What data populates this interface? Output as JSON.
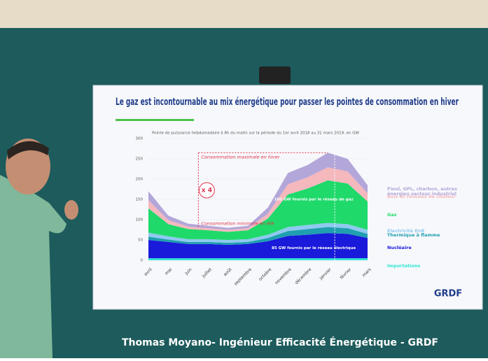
{
  "slide": {
    "title": "Le gaz est incontournable au mix énergétique pour passer les pointes de consommation en hiver",
    "chart": {
      "type": "area",
      "subtitle": "Pointe de puissance hebdomadaire à 8h du matin sur la période du 1er avril 2018 au 31 mars 2019, en GW",
      "categories": [
        "avril",
        "mai",
        "juin",
        "juillet",
        "août",
        "septembre",
        "octobre",
        "novembre",
        "décembre",
        "janvier",
        "février",
        "mars"
      ],
      "ylim": [
        0,
        300
      ],
      "yticks": [
        0,
        50,
        100,
        150,
        200,
        250,
        300
      ],
      "series": [
        {
          "name": "Importations",
          "color": "#2ee6d6",
          "values": [
            5,
            5,
            5,
            5,
            5,
            5,
            5,
            5,
            5,
            5,
            5,
            5
          ]
        },
        {
          "name": "Nucléaire",
          "color": "#1a1adb",
          "values": [
            45,
            40,
            35,
            35,
            33,
            35,
            42,
            55,
            58,
            62,
            60,
            50
          ]
        },
        {
          "name": "Thermique à flamme",
          "color": "#1f9fb0",
          "values": [
            8,
            6,
            5,
            5,
            5,
            5,
            8,
            12,
            14,
            15,
            14,
            10
          ]
        },
        {
          "name": "Electricité EnR",
          "color": "#8ec9f0",
          "values": [
            10,
            8,
            7,
            7,
            7,
            7,
            8,
            10,
            10,
            10,
            10,
            10
          ]
        },
        {
          "name": "Gaz",
          "color": "#1fd96a",
          "values": [
            60,
            30,
            25,
            22,
            20,
            22,
            40,
            80,
            90,
            105,
            100,
            70
          ]
        },
        {
          "name": "Bois et réseaux de chaleur",
          "color": "#f4b8bd",
          "values": [
            20,
            10,
            6,
            5,
            5,
            5,
            12,
            25,
            28,
            32,
            30,
            20
          ]
        },
        {
          "name": "Fioul, GPL, charbon, autres énergies secteur industriel",
          "color": "#b3a6d9",
          "values": [
            22,
            11,
            7,
            6,
            5,
            6,
            15,
            28,
            30,
            36,
            31,
            20
          ]
        }
      ],
      "annotations": {
        "max": "Consommation maximale en hiver",
        "ratio": "x 4",
        "min": "Consommation minimale en été",
        "gas": "105 GW fournis par le réseau de gaz",
        "elec": "85 GW fournis par le réseau électrique"
      }
    },
    "logo": "GRDF"
  },
  "caption": "Thomas Moyano- Ingénieur Efficacité Énergétique - GRDF"
}
